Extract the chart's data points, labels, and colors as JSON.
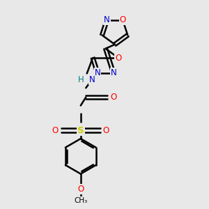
{
  "bg_color": "#e8e8e8",
  "bond_color": "#000000",
  "N_color": "#0000cc",
  "O_color": "#ff0000",
  "S_color": "#cccc00",
  "H_color": "#008080",
  "line_width": 1.8,
  "fig_width": 3.0,
  "fig_height": 3.0,
  "dpi": 100,
  "xlim": [
    0,
    10
  ],
  "ylim": [
    0,
    10
  ]
}
